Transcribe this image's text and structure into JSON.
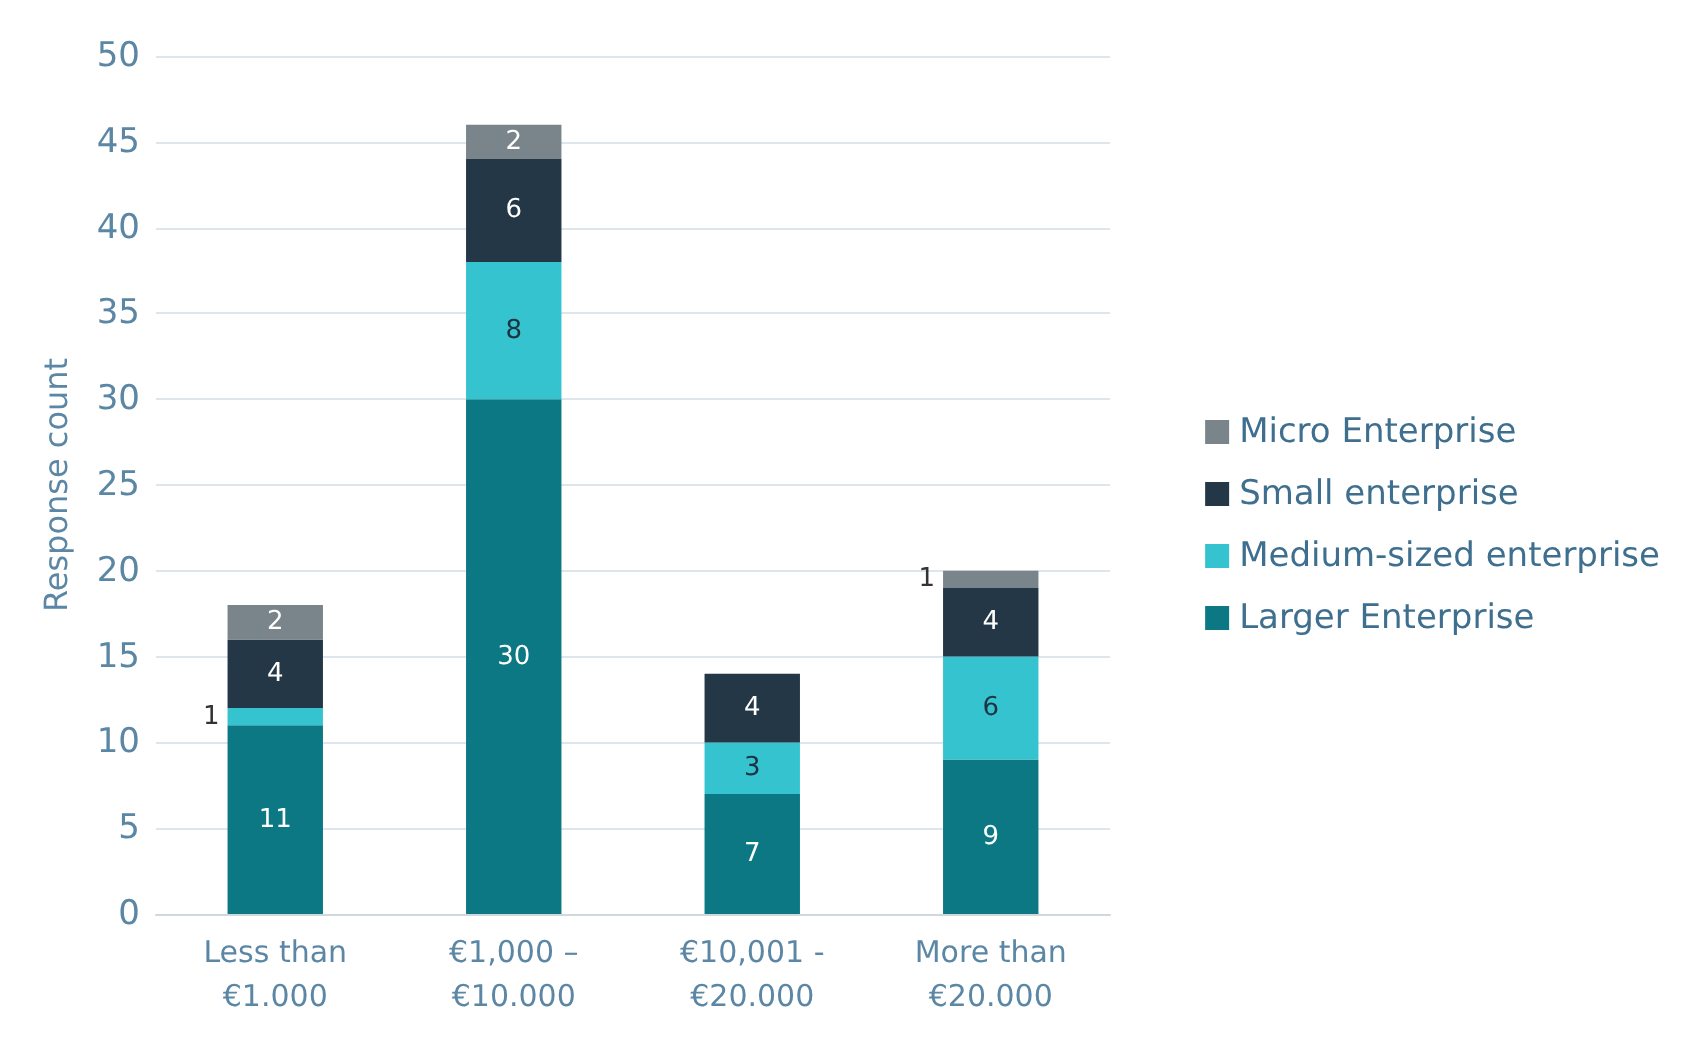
{
  "chart_data": {
    "type": "bar",
    "stacked": true,
    "ylabel": "Response count",
    "categories": [
      "Less than\n€1.000",
      "€1,000 –\n€10.000",
      "€10,001 -\n€20.000",
      "More than\n€20.000"
    ],
    "series": [
      {
        "name": "Larger Enterprise",
        "color": "#0b7883",
        "values": [
          11,
          30,
          7,
          9
        ]
      },
      {
        "name": "Medium-sized enterprise",
        "color": "#36c3d0",
        "values": [
          1,
          8,
          3,
          6
        ]
      },
      {
        "name": "Small enterprise",
        "color": "#243746",
        "values": [
          4,
          6,
          4,
          4
        ]
      },
      {
        "name": "Micro Enterprise",
        "color": "#7a858b",
        "values": [
          2,
          2,
          null,
          1
        ]
      }
    ],
    "ylim": [
      0,
      50
    ],
    "yticks": [
      0,
      5,
      10,
      15,
      20,
      25,
      30,
      35,
      40,
      45,
      50
    ],
    "grid": "y",
    "legend": "right",
    "data_labels": true
  }
}
